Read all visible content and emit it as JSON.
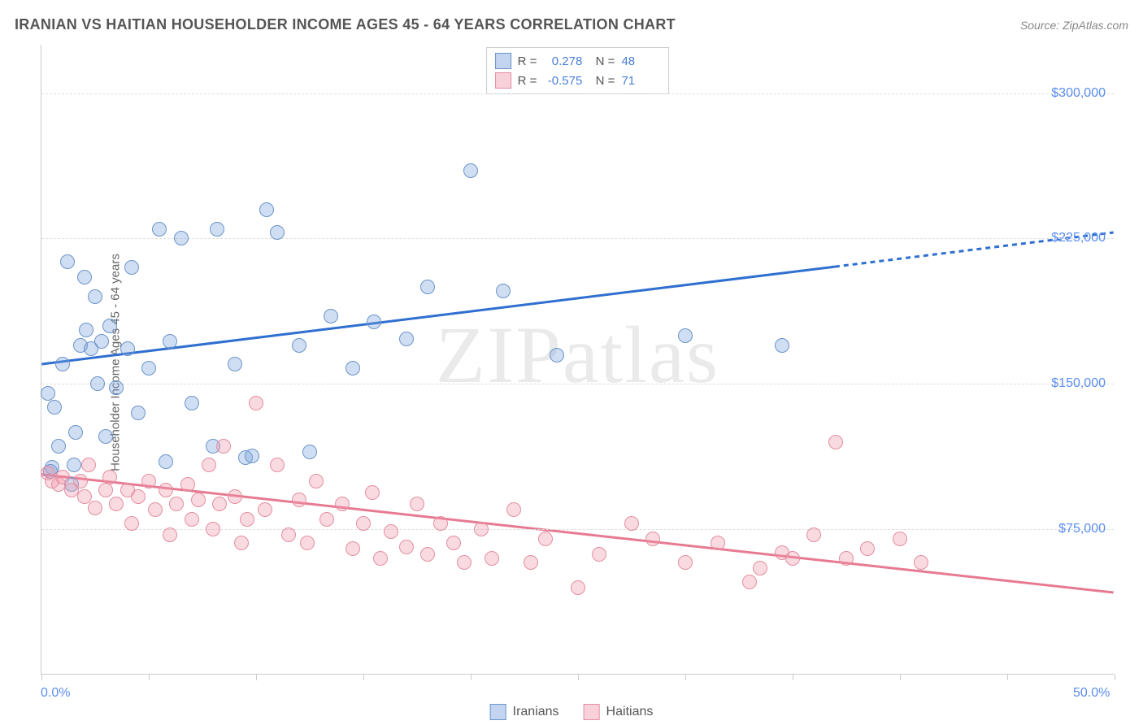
{
  "header": {
    "title": "IRANIAN VS HAITIAN HOUSEHOLDER INCOME AGES 45 - 64 YEARS CORRELATION CHART",
    "source": "Source: ZipAtlas.com"
  },
  "ylabel": "Householder Income Ages 45 - 64 years",
  "watermark": "ZIPatlas",
  "chart": {
    "type": "scatter",
    "background_color": "#ffffff",
    "grid_color": "#dddddd",
    "axis_color": "#cccccc",
    "xlim": [
      0,
      50
    ],
    "ylim": [
      0,
      325000
    ],
    "xtick_positions": [
      0,
      5,
      10,
      15,
      20,
      25,
      30,
      35,
      40,
      45,
      50
    ],
    "ytick_positions": [
      75000,
      150000,
      225000,
      300000
    ],
    "ytick_labels": [
      "$75,000",
      "$150,000",
      "$225,000",
      "$300,000"
    ],
    "xtick_labels_shown": {
      "0": "0.0%",
      "50": "50.0%"
    },
    "tick_label_color": "#5b8def",
    "tick_label_fontsize": 16,
    "axis_label_fontsize": 15,
    "point_radius": 9,
    "point_border_width": 1.5,
    "series": [
      {
        "name": "Iranians",
        "color_fill": "rgba(120,160,220,0.35)",
        "color_stroke": "#6b94c9",
        "R": "0.278",
        "N": "48",
        "trend": {
          "y_at_x0": 160000,
          "y_at_x50": 228000,
          "solid_to_x": 37,
          "line_color": "#2f6fd0",
          "line_width": 3
        },
        "points": [
          [
            0.3,
            145000
          ],
          [
            0.5,
            107000
          ],
          [
            0.6,
            138000
          ],
          [
            0.8,
            118000
          ],
          [
            1.0,
            160000
          ],
          [
            1.2,
            213000
          ],
          [
            1.4,
            98000
          ],
          [
            1.5,
            108000
          ],
          [
            1.6,
            125000
          ],
          [
            1.8,
            170000
          ],
          [
            2.0,
            205000
          ],
          [
            2.1,
            178000
          ],
          [
            2.3,
            168000
          ],
          [
            2.5,
            195000
          ],
          [
            2.6,
            150000
          ],
          [
            2.8,
            172000
          ],
          [
            3.0,
            123000
          ],
          [
            3.2,
            180000
          ],
          [
            3.5,
            148000
          ],
          [
            4.0,
            168000
          ],
          [
            4.2,
            210000
          ],
          [
            4.5,
            135000
          ],
          [
            5.0,
            158000
          ],
          [
            5.5,
            230000
          ],
          [
            5.8,
            110000
          ],
          [
            6.0,
            172000
          ],
          [
            6.5,
            225000
          ],
          [
            7.0,
            140000
          ],
          [
            8.0,
            118000
          ],
          [
            8.2,
            230000
          ],
          [
            9.0,
            160000
          ],
          [
            9.5,
            112000
          ],
          [
            9.8,
            113000
          ],
          [
            10.5,
            240000
          ],
          [
            11.0,
            228000
          ],
          [
            12.0,
            170000
          ],
          [
            12.5,
            115000
          ],
          [
            13.5,
            185000
          ],
          [
            14.5,
            158000
          ],
          [
            15.5,
            182000
          ],
          [
            17.0,
            173000
          ],
          [
            18.0,
            200000
          ],
          [
            20.0,
            260000
          ],
          [
            21.5,
            198000
          ],
          [
            24.0,
            165000
          ],
          [
            30.0,
            175000
          ],
          [
            34.5,
            170000
          ],
          [
            0.4,
            105000
          ]
        ]
      },
      {
        "name": "Haitians",
        "color_fill": "rgba(240,150,170,0.35)",
        "color_stroke": "#e38fa0",
        "R": "-0.575",
        "N": "71",
        "trend": {
          "y_at_x0": 103000,
          "y_at_x50": 42000,
          "solid_to_x": 50,
          "line_color": "#e77a93",
          "line_width": 3
        },
        "points": [
          [
            0.3,
            104000
          ],
          [
            0.5,
            100000
          ],
          [
            0.8,
            98000
          ],
          [
            1.0,
            102000
          ],
          [
            1.4,
            95000
          ],
          [
            1.8,
            100000
          ],
          [
            2.0,
            92000
          ],
          [
            2.2,
            108000
          ],
          [
            2.5,
            86000
          ],
          [
            3.0,
            95000
          ],
          [
            3.2,
            102000
          ],
          [
            3.5,
            88000
          ],
          [
            4.0,
            95000
          ],
          [
            4.2,
            78000
          ],
          [
            4.5,
            92000
          ],
          [
            5.0,
            100000
          ],
          [
            5.3,
            85000
          ],
          [
            5.8,
            95000
          ],
          [
            6.0,
            72000
          ],
          [
            6.3,
            88000
          ],
          [
            6.8,
            98000
          ],
          [
            7.0,
            80000
          ],
          [
            7.3,
            90000
          ],
          [
            7.8,
            108000
          ],
          [
            8.0,
            75000
          ],
          [
            8.3,
            88000
          ],
          [
            8.5,
            118000
          ],
          [
            9.0,
            92000
          ],
          [
            9.3,
            68000
          ],
          [
            9.6,
            80000
          ],
          [
            10.0,
            140000
          ],
          [
            10.4,
            85000
          ],
          [
            11.0,
            108000
          ],
          [
            11.5,
            72000
          ],
          [
            12.0,
            90000
          ],
          [
            12.4,
            68000
          ],
          [
            12.8,
            100000
          ],
          [
            13.3,
            80000
          ],
          [
            14.0,
            88000
          ],
          [
            14.5,
            65000
          ],
          [
            15.0,
            78000
          ],
          [
            15.4,
            94000
          ],
          [
            15.8,
            60000
          ],
          [
            16.3,
            74000
          ],
          [
            17.0,
            66000
          ],
          [
            17.5,
            88000
          ],
          [
            18.0,
            62000
          ],
          [
            18.6,
            78000
          ],
          [
            19.2,
            68000
          ],
          [
            19.7,
            58000
          ],
          [
            20.5,
            75000
          ],
          [
            21.0,
            60000
          ],
          [
            22.0,
            85000
          ],
          [
            22.8,
            58000
          ],
          [
            23.5,
            70000
          ],
          [
            25.0,
            45000
          ],
          [
            26.0,
            62000
          ],
          [
            27.5,
            78000
          ],
          [
            28.5,
            70000
          ],
          [
            30.0,
            58000
          ],
          [
            31.5,
            68000
          ],
          [
            33.0,
            48000
          ],
          [
            34.5,
            63000
          ],
          [
            36.0,
            72000
          ],
          [
            37.0,
            120000
          ],
          [
            37.5,
            60000
          ],
          [
            38.5,
            65000
          ],
          [
            40.0,
            70000
          ],
          [
            41.0,
            58000
          ],
          [
            33.5,
            55000
          ],
          [
            35.0,
            60000
          ]
        ]
      }
    ]
  },
  "legend_top": {
    "rows": [
      {
        "swatch_fill": "rgba(120,160,220,0.45)",
        "swatch_stroke": "#6b94c9",
        "r_label": "R =",
        "r_val": "0.278",
        "n_label": "N =",
        "n_val": "48"
      },
      {
        "swatch_fill": "rgba(240,150,170,0.45)",
        "swatch_stroke": "#e38fa0",
        "r_label": "R =",
        "r_val": "-0.575",
        "n_label": "N =",
        "n_val": "71"
      }
    ]
  },
  "legend_bottom": {
    "items": [
      {
        "swatch_fill": "rgba(120,160,220,0.45)",
        "swatch_stroke": "#6b94c9",
        "label": "Iranians"
      },
      {
        "swatch_fill": "rgba(240,150,170,0.45)",
        "swatch_stroke": "#e38fa0",
        "label": "Haitians"
      }
    ]
  }
}
